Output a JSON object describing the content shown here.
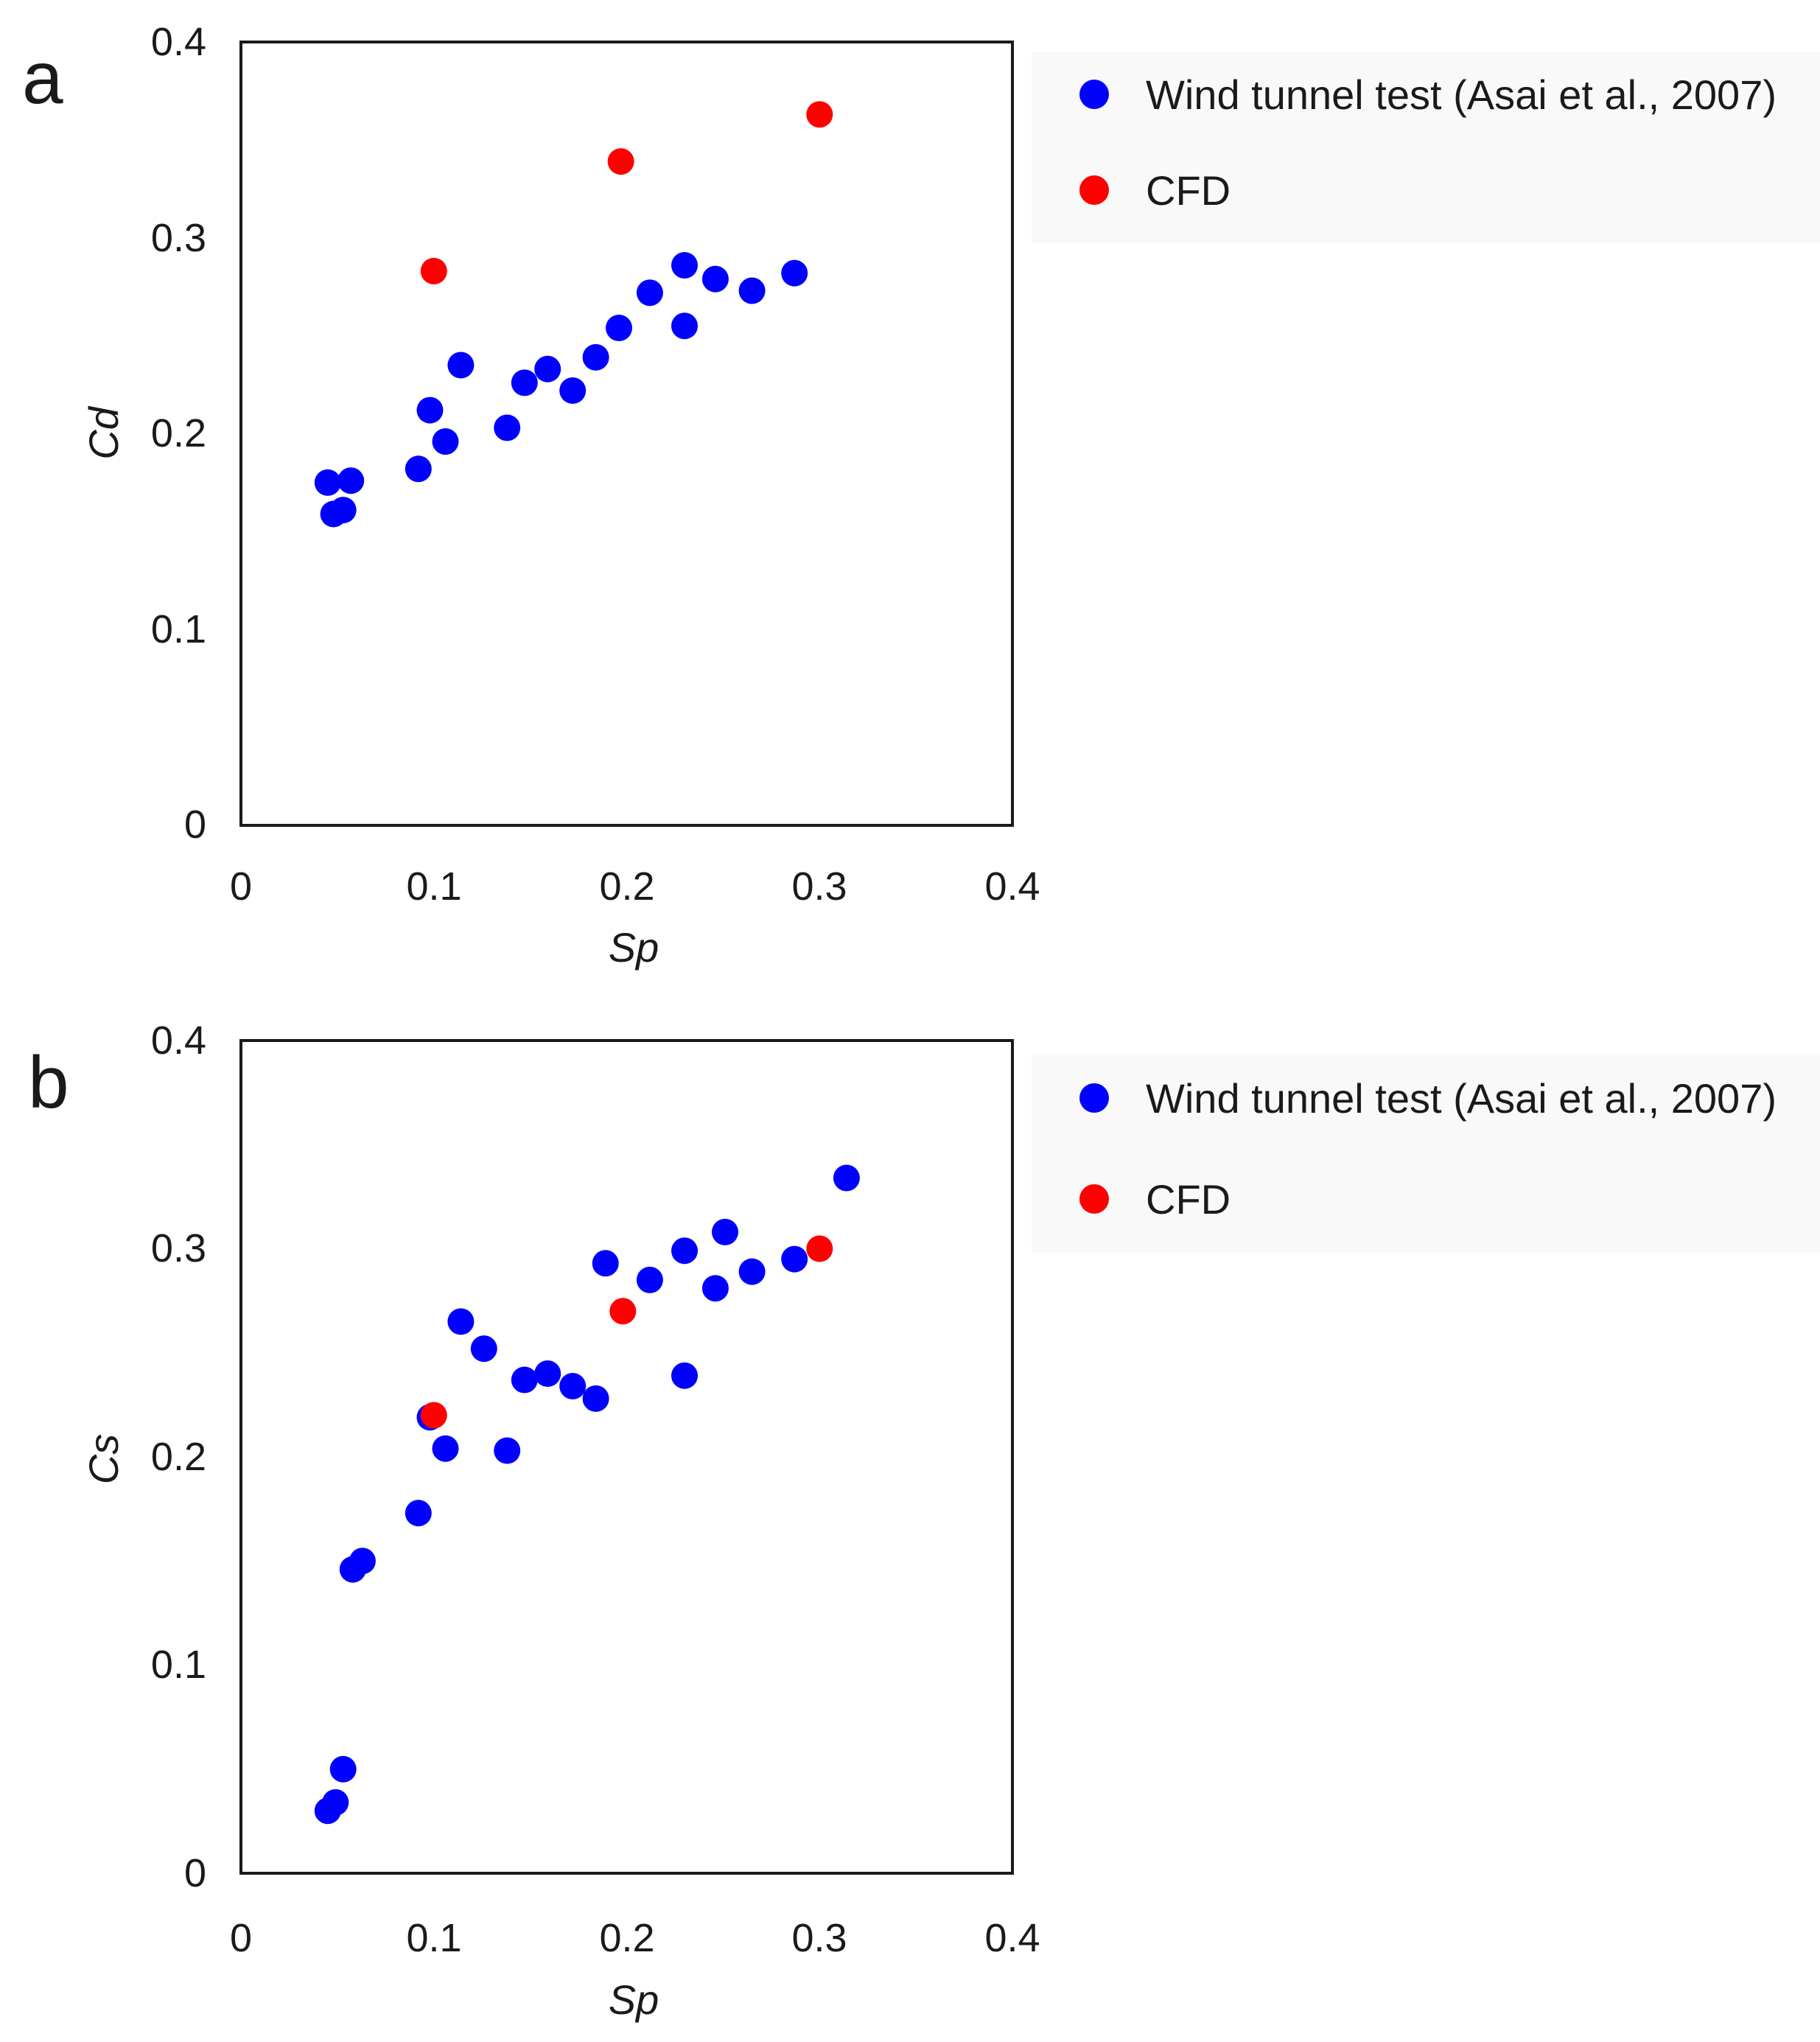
{
  "chart_data": [
    {
      "panel_label": "a",
      "type": "scatter",
      "xlabel": "Sp",
      "ylabel": "Cd",
      "xlim": [
        0,
        0.4
      ],
      "ylim": [
        0,
        0.4
      ],
      "xticks": [
        "0",
        "0.1",
        "0.2",
        "0.3",
        "0.4"
      ],
      "yticks": [
        "0",
        "0.1",
        "0.2",
        "0.3",
        "0.4"
      ],
      "grid": false,
      "legend_position": "outside-right-top",
      "series": [
        {
          "name": "Wind tunnel test (Asai et al., 2007)",
          "color": "#0000ff",
          "points": [
            [
              0.045,
              0.175
            ],
            [
              0.048,
              0.159
            ],
            [
              0.053,
              0.161
            ],
            [
              0.057,
              0.176
            ],
            [
              0.092,
              0.182
            ],
            [
              0.098,
              0.212
            ],
            [
              0.106,
              0.196
            ],
            [
              0.114,
              0.235
            ],
            [
              0.138,
              0.203
            ],
            [
              0.147,
              0.226
            ],
            [
              0.159,
              0.233
            ],
            [
              0.172,
              0.222
            ],
            [
              0.184,
              0.239
            ],
            [
              0.196,
              0.254
            ],
            [
              0.212,
              0.272
            ],
            [
              0.23,
              0.286
            ],
            [
              0.23,
              0.255
            ],
            [
              0.246,
              0.279
            ],
            [
              0.265,
              0.273
            ],
            [
              0.287,
              0.282
            ]
          ]
        },
        {
          "name": "CFD",
          "color": "#ff0000",
          "points": [
            [
              0.1,
              0.283
            ],
            [
              0.197,
              0.339
            ],
            [
              0.3,
              0.363
            ]
          ]
        }
      ]
    },
    {
      "panel_label": "b",
      "type": "scatter",
      "xlabel": "Sp",
      "ylabel": "Cs",
      "xlim": [
        0,
        0.4
      ],
      "ylim": [
        0,
        0.4
      ],
      "xticks": [
        "0",
        "0.1",
        "0.2",
        "0.3",
        "0.4"
      ],
      "yticks": [
        "0",
        "0.1",
        "0.2",
        "0.3",
        "0.4"
      ],
      "grid": false,
      "legend_position": "outside-right-top",
      "series": [
        {
          "name": "Wind tunnel test (Asai et al., 2007)",
          "color": "#0000ff",
          "points": [
            [
              0.045,
              0.03
            ],
            [
              0.049,
              0.034
            ],
            [
              0.053,
              0.05
            ],
            [
              0.058,
              0.146
            ],
            [
              0.063,
              0.15
            ],
            [
              0.092,
              0.173
            ],
            [
              0.098,
              0.219
            ],
            [
              0.106,
              0.204
            ],
            [
              0.114,
              0.265
            ],
            [
              0.126,
              0.252
            ],
            [
              0.138,
              0.203
            ],
            [
              0.147,
              0.237
            ],
            [
              0.159,
              0.24
            ],
            [
              0.172,
              0.234
            ],
            [
              0.184,
              0.228
            ],
            [
              0.189,
              0.293
            ],
            [
              0.212,
              0.285
            ],
            [
              0.23,
              0.299
            ],
            [
              0.23,
              0.239
            ],
            [
              0.246,
              0.281
            ],
            [
              0.251,
              0.308
            ],
            [
              0.265,
              0.289
            ],
            [
              0.287,
              0.295
            ],
            [
              0.314,
              0.334
            ]
          ]
        },
        {
          "name": "CFD",
          "color": "#ff0000",
          "points": [
            [
              0.1,
              0.22
            ],
            [
              0.198,
              0.27
            ],
            [
              0.3,
              0.3
            ]
          ]
        }
      ]
    }
  ]
}
